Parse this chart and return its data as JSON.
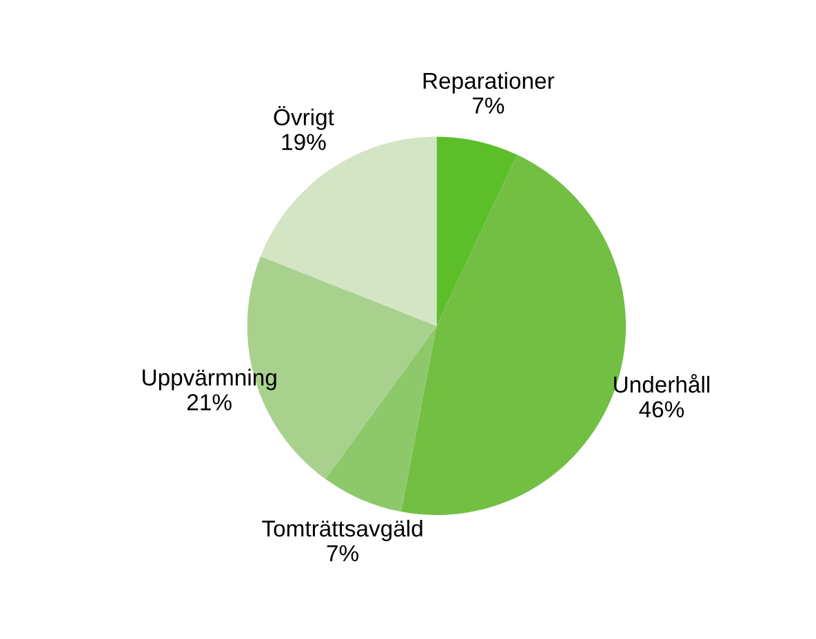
{
  "chart_data": {
    "type": "pie",
    "categories": [
      "Reparationer",
      "Underhåll",
      "Tomträttsavgäld",
      "Uppvärmning",
      "Övrigt"
    ],
    "values": [
      7,
      46,
      7,
      21,
      19
    ],
    "value_labels": [
      "7%",
      "46%",
      "7%",
      "21%",
      "19%"
    ],
    "colors": [
      "#5cbf2a",
      "#72bf44",
      "#8dc96a",
      "#a9d18e",
      "#d3e5c4"
    ]
  }
}
